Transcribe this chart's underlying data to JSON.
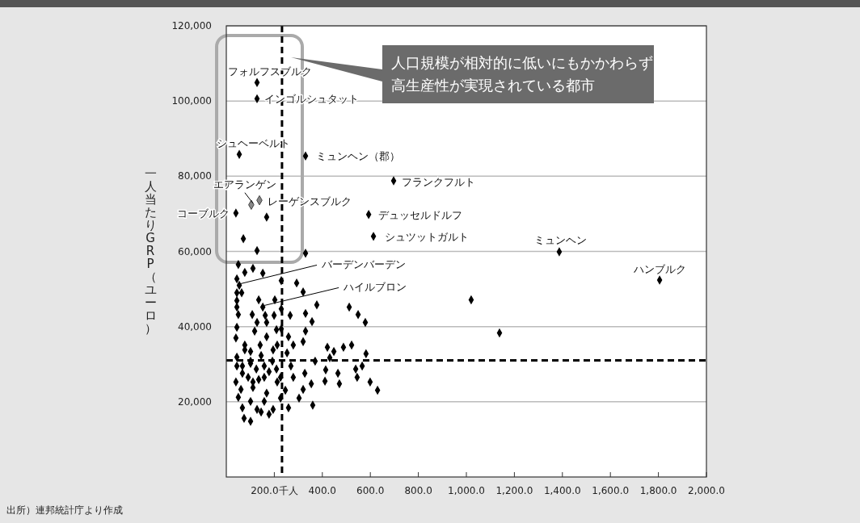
{
  "chart_data": {
    "type": "scatter",
    "ylabel": "一人当たりGRP（ユーロ）",
    "xlim": [
      0,
      2000
    ],
    "ylim": [
      0,
      120000
    ],
    "xticks": [
      {
        "value": 200,
        "label": "200.0千人"
      },
      {
        "value": 400,
        "label": "400.0"
      },
      {
        "value": 600,
        "label": "600.0"
      },
      {
        "value": 800,
        "label": "800.0"
      },
      {
        "value": 1000,
        "label": "1,000.0"
      },
      {
        "value": 1200,
        "label": "1,200.0"
      },
      {
        "value": 1400,
        "label": "1,400.0"
      },
      {
        "value": 1600,
        "label": "1,600.0"
      },
      {
        "value": 1800,
        "label": "1,800.0"
      },
      {
        "value": 2000,
        "label": "2,000.0"
      }
    ],
    "yticks": [
      {
        "value": 20000,
        "label": "20,000"
      },
      {
        "value": 40000,
        "label": "40,000"
      },
      {
        "value": 60000,
        "label": "60,000"
      },
      {
        "value": 80000,
        "label": "80,000"
      },
      {
        "value": 100000,
        "label": "100,000"
      },
      {
        "value": 120000,
        "label": "120,000"
      }
    ],
    "grid": "y",
    "marker": "diamond",
    "series": [
      {
        "color": "#000000",
        "x": [
          128,
          128,
          54,
          330,
          697,
          593,
          613,
          1387,
          1805,
          40,
          168,
          71,
          128,
          330,
          1020,
          1138,
          50,
          77,
          111,
          152,
          44,
          54,
          44,
          64,
          229,
          293,
          320,
          135,
          202,
          152,
          44,
          44,
          229,
          377,
          512,
          549,
          579,
          50,
          108,
          162,
          199,
          266,
          330,
          357,
          128,
          168,
          44,
          118,
          209,
          229,
          330,
          40,
          168,
          259,
          320,
          77,
          141,
          279,
          421,
          488,
          522,
          448,
          582,
          101,
          195,
          253,
          44,
          370,
          431,
          44,
          101,
          158,
          209,
          269,
          414,
          539,
          566,
          465,
          327,
          67,
          40,
          135,
          212,
          279,
          411,
          471,
          545,
          599,
          630,
          354,
          61,
          111,
          168,
          246,
          320,
          50,
          101,
          158,
          226,
          303,
          360,
          67,
          128,
          195,
          259,
          74,
          101,
          145,
          178,
          77,
          101,
          125,
          91,
          158,
          111,
          192,
          145,
          67,
          212,
          178,
          226
        ],
        "values": [
          104900,
          100600,
          85800,
          85400,
          78800,
          69800,
          64000,
          59900,
          52400,
          70200,
          69100,
          63400,
          60200,
          59500,
          47100,
          38300,
          56500,
          54400,
          55500,
          54200,
          52700,
          51000,
          49000,
          49000,
          52200,
          51600,
          49200,
          47100,
          47100,
          45200,
          46900,
          45200,
          44700,
          45800,
          45200,
          43200,
          41100,
          43200,
          43200,
          43000,
          43000,
          43000,
          43500,
          41300,
          41100,
          41100,
          39800,
          38800,
          39200,
          39400,
          38800,
          37000,
          37300,
          37300,
          36000,
          35100,
          35100,
          35100,
          34500,
          34500,
          35100,
          33400,
          32800,
          33400,
          33800,
          33000,
          31900,
          30800,
          31700,
          29500,
          30200,
          29500,
          28700,
          29500,
          28500,
          28700,
          29500,
          27600,
          27600,
          27600,
          25300,
          25900,
          25300,
          26500,
          25500,
          24800,
          26500,
          25300,
          23100,
          24800,
          23300,
          23800,
          22300,
          23100,
          23300,
          21200,
          20100,
          20100,
          21000,
          21000,
          19100,
          18400,
          18000,
          18000,
          18400,
          15600,
          14800,
          17300,
          16700,
          33800,
          30800,
          28700,
          26500,
          26500,
          25300,
          30800,
          32300,
          29500,
          35100,
          28000,
          26500
        ]
      },
      {
        "color": "#888888",
        "x": [
          104,
          138
        ],
        "values": [
          72400,
          73600
        ]
      }
    ],
    "ref_lines": [
      {
        "axis": "x",
        "value": 232,
        "color": "#000000",
        "line_style": "dashed"
      },
      {
        "axis": "y",
        "value": 31000,
        "color": "#000000",
        "line_style": "dashed"
      }
    ],
    "annotations": [
      {
        "text": "フォルフスブルク",
        "x": 128,
        "y": 104900
      },
      {
        "text": "インゴルシュタット",
        "x": 128,
        "y": 100600
      },
      {
        "text": "シュヘーベルト",
        "x": 54,
        "y": 85800
      },
      {
        "text": "ミュンヘン（郡）",
        "x": 330,
        "y": 85400
      },
      {
        "text": "フランクフルト",
        "x": 697,
        "y": 78800
      },
      {
        "text": "デュッセルドルフ",
        "x": 593,
        "y": 69800
      },
      {
        "text": "シュツットガルト",
        "x": 613,
        "y": 64000
      },
      {
        "text": "ミュンヘン",
        "x": 1387,
        "y": 59900
      },
      {
        "text": "ハンブルク",
        "x": 1805,
        "y": 52400
      },
      {
        "text": "エアランゲン",
        "x": 104,
        "y": 72400
      },
      {
        "text": "レーゲンスブルク",
        "x": 138,
        "y": 73600
      },
      {
        "text": "コーブルク",
        "x": 40,
        "y": 70200
      },
      {
        "text": "バーデンバーデン",
        "x": 54,
        "y": 51000
      },
      {
        "text": "ハイルブロン",
        "x": 152,
        "y": 45200
      },
      "人口規模が相対的に低いにもかかわらず高生産性が実現されている都市",
      "出所）連邦統計庁より作成"
    ]
  }
}
